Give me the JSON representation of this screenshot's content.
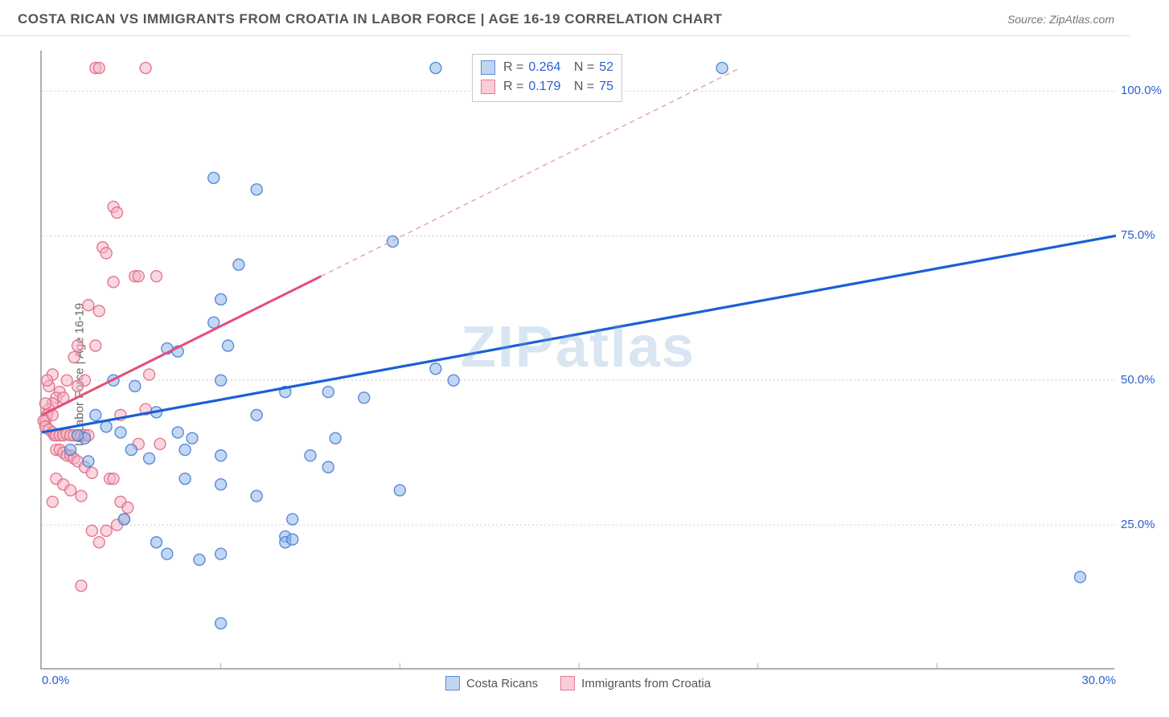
{
  "header": {
    "title": "COSTA RICAN VS IMMIGRANTS FROM CROATIA IN LABOR FORCE | AGE 16-19 CORRELATION CHART",
    "source_prefix": "Source: ",
    "source_name": "ZipAtlas.com"
  },
  "watermark": "ZIPatlas",
  "chart": {
    "type": "scatter",
    "ylabel": "In Labor Force | Age 16-19",
    "xlim": [
      0,
      30
    ],
    "ylim": [
      0,
      107
    ],
    "background_color": "#ffffff",
    "grid_color": "#cfcfcf",
    "axis_color": "#b0b0b0",
    "tick_label_color": "#2a5fd0",
    "yticks": [
      25,
      50,
      75,
      100
    ],
    "ytick_labels": [
      "25.0%",
      "50.0%",
      "75.0%",
      "100.0%"
    ],
    "xticks": [
      0,
      30
    ],
    "xtick_labels": [
      "0.0%",
      "30.0%"
    ],
    "xtick_minor": [
      5,
      10,
      15,
      20,
      25
    ],
    "marker_radius": 7,
    "marker_opacity": 0.55,
    "marker_stroke_opacity": 0.9,
    "series": [
      {
        "name": "Costa Ricans",
        "color_fill": "#8fb6ea",
        "color_stroke": "#4a7fd6",
        "swatch_fill": "#c0d5f2",
        "swatch_border": "#5b8fd8",
        "R": "0.264",
        "N": "52",
        "regression": {
          "x1": 0,
          "y1": 41,
          "x2": 30,
          "y2": 75,
          "dash": false
        },
        "points": [
          [
            11,
            104
          ],
          [
            19,
            104
          ],
          [
            29,
            16
          ],
          [
            4.8,
            85
          ],
          [
            6,
            83
          ],
          [
            5.5,
            70
          ],
          [
            9.8,
            74
          ],
          [
            5,
            64
          ],
          [
            4.8,
            60
          ],
          [
            3.5,
            55.5
          ],
          [
            3.8,
            55
          ],
          [
            5.2,
            56
          ],
          [
            5,
            50
          ],
          [
            6.8,
            48
          ],
          [
            8,
            48
          ],
          [
            9,
            47
          ],
          [
            11,
            52
          ],
          [
            11.5,
            50
          ],
          [
            2,
            50
          ],
          [
            2.6,
            49
          ],
          [
            3.2,
            44.5
          ],
          [
            3.8,
            41
          ],
          [
            4.2,
            40
          ],
          [
            1.5,
            44
          ],
          [
            1.8,
            42
          ],
          [
            2.2,
            41
          ],
          [
            1.2,
            40
          ],
          [
            1,
            40.5
          ],
          [
            0.8,
            38
          ],
          [
            1.3,
            36
          ],
          [
            2.5,
            38
          ],
          [
            3,
            36.5
          ],
          [
            4,
            38
          ],
          [
            5,
            37
          ],
          [
            4,
            33
          ],
          [
            5,
            32
          ],
          [
            7.5,
            37
          ],
          [
            8,
            35
          ],
          [
            6,
            30
          ],
          [
            10,
            31
          ],
          [
            6.8,
            23
          ],
          [
            6.8,
            22
          ],
          [
            7,
            22.5
          ],
          [
            5,
            20
          ],
          [
            4.4,
            19
          ],
          [
            3.5,
            20
          ],
          [
            3.2,
            22
          ],
          [
            2.3,
            26
          ],
          [
            5,
            8
          ],
          [
            7,
            26
          ],
          [
            8.2,
            40
          ],
          [
            6,
            44
          ]
        ]
      },
      {
        "name": "Immigrants from Croatia",
        "color_fill": "#f2b6c4",
        "color_stroke": "#e46a87",
        "swatch_fill": "#f7ced8",
        "swatch_border": "#e67a94",
        "R": "0.179",
        "N": "75",
        "regression": {
          "x1": 0,
          "y1": 44,
          "x2": 7.8,
          "y2": 68,
          "dash": false
        },
        "regression_dash": {
          "x1": 7.8,
          "y1": 68,
          "x2": 19.5,
          "y2": 104
        },
        "points": [
          [
            1.5,
            104
          ],
          [
            1.6,
            104
          ],
          [
            2.9,
            104
          ],
          [
            2.0,
            80
          ],
          [
            2.1,
            79
          ],
          [
            1.7,
            73
          ],
          [
            1.8,
            72
          ],
          [
            2.6,
            68
          ],
          [
            2.7,
            68
          ],
          [
            3.2,
            68
          ],
          [
            2.0,
            67
          ],
          [
            1.3,
            63
          ],
          [
            1.6,
            62
          ],
          [
            1.0,
            56
          ],
          [
            0.9,
            54
          ],
          [
            1.5,
            56
          ],
          [
            1.2,
            50
          ],
          [
            0.7,
            50
          ],
          [
            0.5,
            48
          ],
          [
            0.4,
            47
          ],
          [
            0.3,
            46
          ],
          [
            0.2,
            45
          ],
          [
            0.15,
            44
          ],
          [
            0.1,
            43
          ],
          [
            0.05,
            43
          ],
          [
            0.1,
            42
          ],
          [
            0.2,
            41.5
          ],
          [
            0.3,
            41
          ],
          [
            0.35,
            40.5
          ],
          [
            0.4,
            40.5
          ],
          [
            0.5,
            40.5
          ],
          [
            0.6,
            40.5
          ],
          [
            0.7,
            40.7
          ],
          [
            0.8,
            40.5
          ],
          [
            0.9,
            40.5
          ],
          [
            1.0,
            40.5
          ],
          [
            1.1,
            40.5
          ],
          [
            1.2,
            40.5
          ],
          [
            1.3,
            40.5
          ],
          [
            0.4,
            38
          ],
          [
            0.5,
            38
          ],
          [
            0.6,
            37.5
          ],
          [
            0.7,
            37
          ],
          [
            0.8,
            37
          ],
          [
            0.9,
            36.5
          ],
          [
            1.0,
            36
          ],
          [
            1.2,
            35
          ],
          [
            1.4,
            34
          ],
          [
            0.4,
            33
          ],
          [
            0.6,
            32
          ],
          [
            0.8,
            31
          ],
          [
            1.1,
            30
          ],
          [
            0.3,
            29
          ],
          [
            1.9,
            33
          ],
          [
            2.0,
            33
          ],
          [
            2.2,
            29
          ],
          [
            2.4,
            28
          ],
          [
            2.3,
            26
          ],
          [
            2.1,
            25
          ],
          [
            1.8,
            24
          ],
          [
            1.4,
            24
          ],
          [
            1.6,
            22
          ],
          [
            1.1,
            14.5
          ],
          [
            3.0,
            51
          ],
          [
            3.3,
            39
          ],
          [
            2.7,
            39
          ],
          [
            2.9,
            45
          ],
          [
            2.2,
            44
          ],
          [
            0.3,
            44
          ],
          [
            0.6,
            47
          ],
          [
            1.0,
            49
          ],
          [
            0.3,
            51
          ],
          [
            0.2,
            49
          ],
          [
            0.15,
            50
          ],
          [
            0.1,
            46
          ]
        ]
      }
    ],
    "legend": {
      "items": [
        {
          "label": "Costa Ricans",
          "fill": "#c0d5f2",
          "border": "#5b8fd8"
        },
        {
          "label": "Immigrants from Croatia",
          "fill": "#f7ced8",
          "border": "#e67a94"
        }
      ]
    },
    "stats_box": {
      "rows": [
        {
          "fill": "#c0d5f2",
          "border": "#5b8fd8",
          "r_label": "R =",
          "r_val": "0.264",
          "n_label": "N =",
          "n_val": "52"
        },
        {
          "fill": "#f7ced8",
          "border": "#e67a94",
          "r_label": "R =",
          "r_val": "0.179",
          "n_label": "N =",
          "n_val": "75"
        }
      ]
    }
  }
}
